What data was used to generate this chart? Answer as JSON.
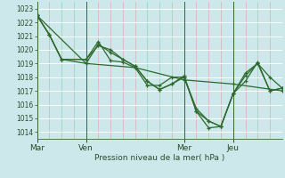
{
  "bg_color": "#cce8ea",
  "grid_color": "#b8d8da",
  "line_color": "#2d6a2d",
  "xlabel": "Pression niveau de la mer( hPa )",
  "ylim": [
    1013.5,
    1023.5
  ],
  "yticks": [
    1014,
    1015,
    1016,
    1017,
    1018,
    1019,
    1020,
    1021,
    1022,
    1023
  ],
  "xtick_labels": [
    "Mar",
    "Ven",
    "Mer",
    "Jeu"
  ],
  "xtick_positions": [
    0.0,
    0.2,
    0.6,
    0.8
  ],
  "xlim": [
    0.0,
    1.0
  ],
  "vlines": [
    0.0,
    0.2,
    0.6,
    0.8
  ],
  "series": [
    {
      "x": [
        0.0,
        0.05,
        0.1,
        0.2,
        0.25,
        0.3,
        0.35,
        0.4,
        0.45,
        0.5,
        0.55,
        0.6,
        0.65,
        0.7,
        0.75,
        0.8,
        0.85,
        0.9,
        0.95,
        1.0
      ],
      "y": [
        1022.5,
        1021.1,
        1019.3,
        1019.3,
        1020.6,
        1019.2,
        1019.1,
        1018.7,
        1017.4,
        1017.4,
        1018.0,
        1018.0,
        1015.5,
        1014.8,
        1014.4,
        1016.8,
        1017.7,
        1019.1,
        1017.0,
        1017.2
      ]
    },
    {
      "x": [
        0.0,
        0.05,
        0.1,
        0.2,
        0.25,
        0.3,
        0.35,
        0.4,
        0.45,
        0.5,
        0.55,
        0.6,
        0.65,
        0.7,
        0.75,
        0.8,
        0.85,
        0.9,
        0.95,
        1.0
      ],
      "y": [
        1022.5,
        1021.1,
        1019.3,
        1019.3,
        1020.3,
        1020.0,
        1019.3,
        1018.8,
        1017.7,
        1017.1,
        1017.5,
        1018.1,
        1015.5,
        1014.3,
        1014.4,
        1016.8,
        1018.3,
        1019.0,
        1018.0,
        1017.2
      ]
    },
    {
      "x": [
        0.0,
        0.2,
        0.4,
        0.6,
        0.8,
        1.0
      ],
      "y": [
        1022.5,
        1019.0,
        1018.7,
        1017.8,
        1017.5,
        1017.0
      ]
    },
    {
      "x": [
        0.0,
        0.05,
        0.1,
        0.2,
        0.25,
        0.3,
        0.35,
        0.4,
        0.45,
        0.5,
        0.55,
        0.6,
        0.65,
        0.7,
        0.75,
        0.8,
        0.85,
        0.9,
        0.95,
        1.0
      ],
      "y": [
        1022.5,
        1021.1,
        1019.3,
        1019.0,
        1020.4,
        1019.8,
        1019.3,
        1018.8,
        1017.7,
        1017.1,
        1017.5,
        1018.0,
        1015.7,
        1014.8,
        1014.4,
        1016.8,
        1018.1,
        1019.0,
        1017.0,
        1017.2
      ]
    }
  ]
}
